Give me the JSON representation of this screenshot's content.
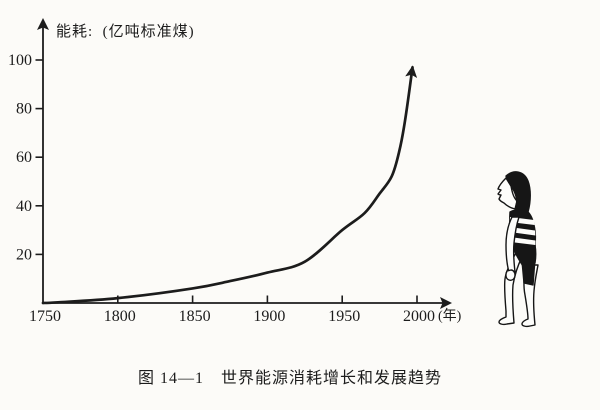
{
  "page": {
    "background": "#fcfbf8",
    "ink": "#1c1c1c"
  },
  "figure": {
    "caption": "图 14—1　世界能源消耗增长和发展趋势",
    "illustration": "child-looking-up-at-rising-curve"
  },
  "chart_data": {
    "type": "line",
    "title": "世界能源消耗增长和发展趋势",
    "y_axis_title": "能耗:  (亿吨标准煤)",
    "x_axis_unit": "(年)",
    "x_ticks": [
      "1750",
      "1800",
      "1850",
      "1900",
      "1950",
      "2000"
    ],
    "y_ticks": [
      "20",
      "40",
      "60",
      "80",
      "100"
    ],
    "x_range": [
      1750,
      2000
    ],
    "y_range": [
      0,
      100
    ],
    "grid": false,
    "legend_position": "none",
    "line_color": "#1c1c1c",
    "curve_ends_with_up_arrow": true,
    "series": [
      {
        "name": "世界能源消耗 (亿吨标准煤)",
        "points": [
          [
            1750,
            0
          ],
          [
            1760,
            0.3
          ],
          [
            1800,
            2
          ],
          [
            1850,
            6
          ],
          [
            1875,
            9
          ],
          [
            1900,
            12.5
          ],
          [
            1925,
            17
          ],
          [
            1950,
            30
          ],
          [
            1965,
            37
          ],
          [
            1975,
            45
          ],
          [
            1983,
            52
          ],
          [
            1988,
            62
          ],
          [
            1992,
            75
          ],
          [
            1997,
            97
          ]
        ]
      }
    ]
  }
}
